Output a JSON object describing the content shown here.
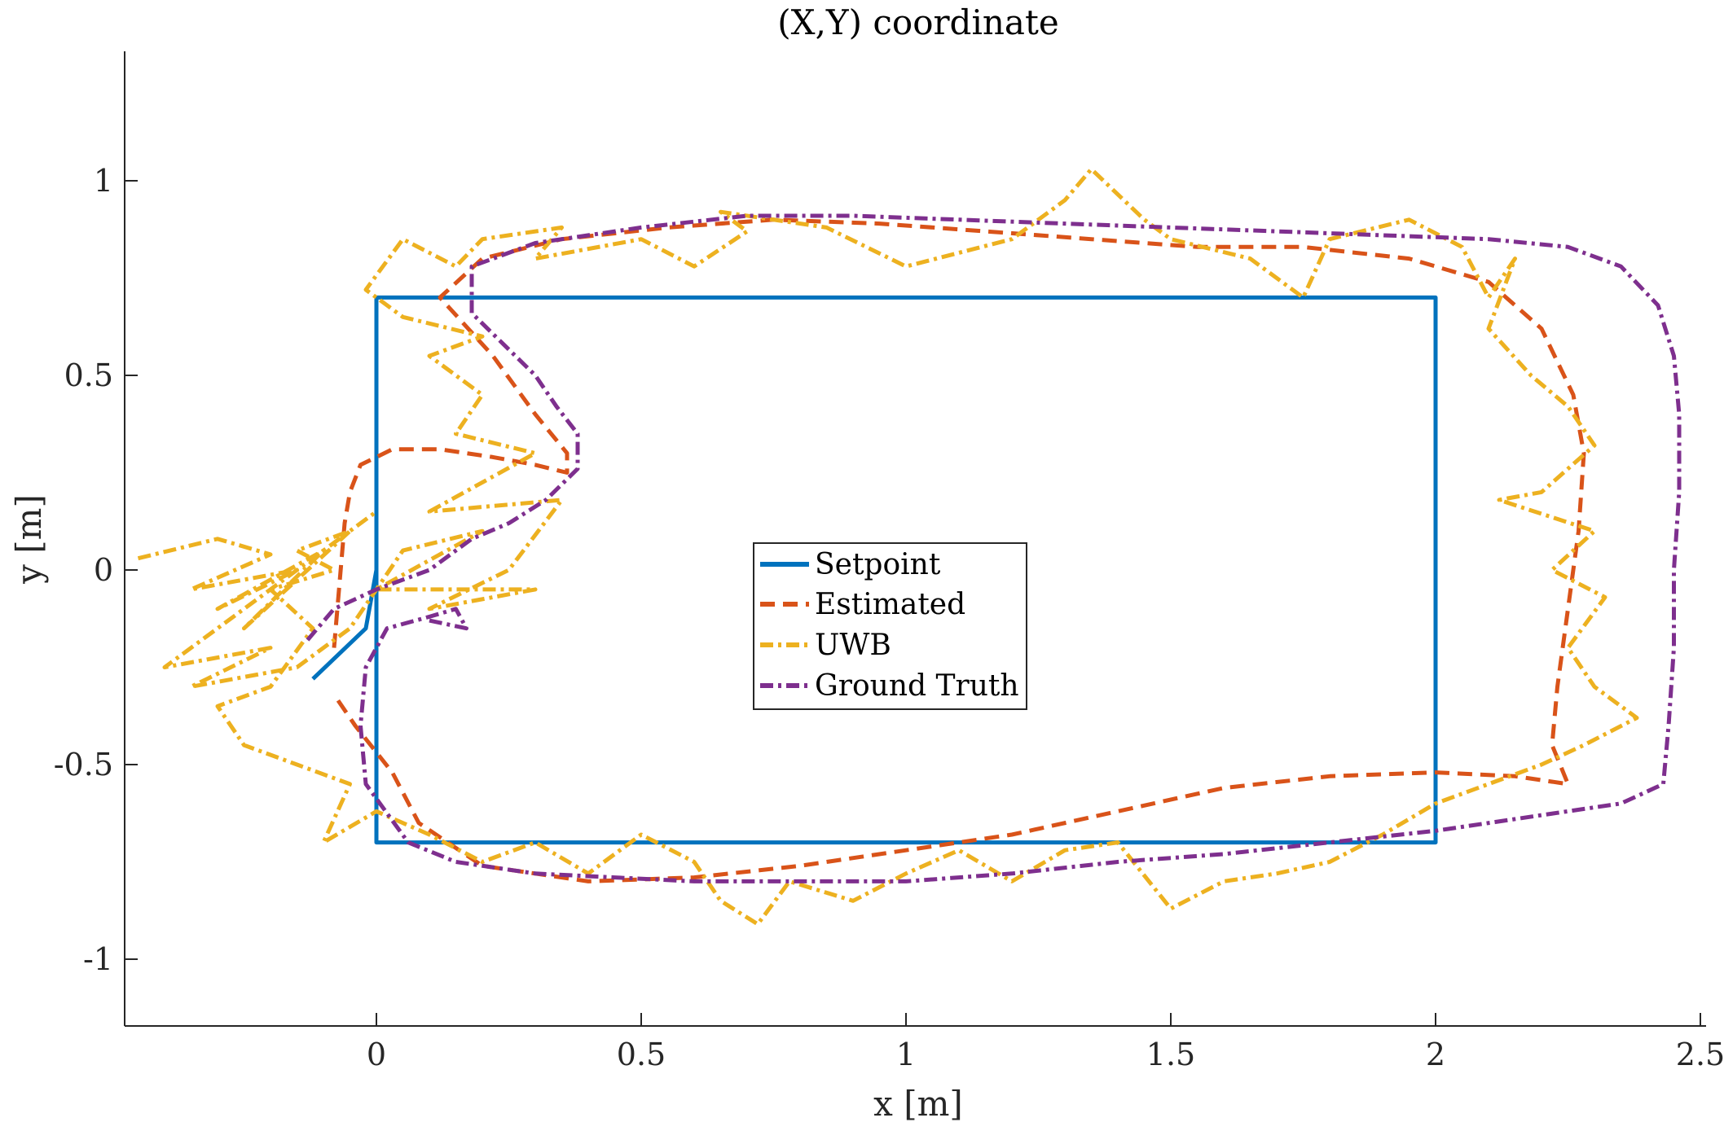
{
  "chart_data": {
    "type": "line",
    "title": "(X,Y) coordinate",
    "xlabel": "x [m]",
    "ylabel": "y [m]",
    "xlim": [
      -0.48,
      2.5
    ],
    "ylim": [
      -1.17,
      1.33
    ],
    "xticks": [
      0,
      0.5,
      1,
      1.5,
      2,
      2.5
    ],
    "xtick_labels": [
      "0",
      "0.5",
      "1",
      "1.5",
      "2",
      "2.5"
    ],
    "yticks": [
      -1,
      -0.5,
      0,
      0.5,
      1
    ],
    "ytick_labels": [
      "-1",
      "-0.5",
      "0",
      "0.5",
      "1"
    ],
    "grid": false,
    "legend_position": "center",
    "series": [
      {
        "name": "Setpoint",
        "color": "#0072BD",
        "style": "solid",
        "points": [
          [
            -0.12,
            -0.28
          ],
          [
            -0.02,
            -0.15
          ],
          [
            0,
            0
          ],
          [
            0,
            0.7
          ],
          [
            2,
            0.7
          ],
          [
            2,
            -0.7
          ],
          [
            0,
            -0.7
          ],
          [
            0,
            0
          ]
        ]
      },
      {
        "name": "Estimated",
        "color": "#D95319",
        "style": "dashed",
        "points": [
          [
            -0.08,
            -0.2
          ],
          [
            -0.06,
            0.12
          ],
          [
            -0.05,
            0.2
          ],
          [
            -0.03,
            0.27
          ],
          [
            0.03,
            0.31
          ],
          [
            0.12,
            0.31
          ],
          [
            0.22,
            0.29
          ],
          [
            0.3,
            0.27
          ],
          [
            0.36,
            0.25
          ],
          [
            0.36,
            0.3
          ],
          [
            0.3,
            0.4
          ],
          [
            0.22,
            0.55
          ],
          [
            0.12,
            0.7
          ],
          [
            0.2,
            0.8
          ],
          [
            0.35,
            0.85
          ],
          [
            0.55,
            0.88
          ],
          [
            0.75,
            0.9
          ],
          [
            0.95,
            0.89
          ],
          [
            1.15,
            0.87
          ],
          [
            1.35,
            0.85
          ],
          [
            1.55,
            0.83
          ],
          [
            1.75,
            0.83
          ],
          [
            1.95,
            0.8
          ],
          [
            2.1,
            0.74
          ],
          [
            2.2,
            0.62
          ],
          [
            2.26,
            0.45
          ],
          [
            2.28,
            0.3
          ],
          [
            2.27,
            0.1
          ],
          [
            2.25,
            -0.1
          ],
          [
            2.23,
            -0.3
          ],
          [
            2.22,
            -0.45
          ],
          [
            2.25,
            -0.55
          ],
          [
            2.15,
            -0.53
          ],
          [
            2.0,
            -0.52
          ],
          [
            1.8,
            -0.53
          ],
          [
            1.6,
            -0.56
          ],
          [
            1.4,
            -0.62
          ],
          [
            1.2,
            -0.68
          ],
          [
            1.0,
            -0.72
          ],
          [
            0.8,
            -0.76
          ],
          [
            0.6,
            -0.79
          ],
          [
            0.4,
            -0.8
          ],
          [
            0.2,
            -0.76
          ],
          [
            0.08,
            -0.65
          ],
          [
            0.03,
            -0.52
          ],
          [
            -0.04,
            -0.4
          ],
          [
            -0.08,
            -0.32
          ]
        ]
      },
      {
        "name": "UWB",
        "color": "#EDB120",
        "style": "dashdot",
        "points": [
          [
            -0.45,
            0.03
          ],
          [
            -0.3,
            0.08
          ],
          [
            -0.2,
            0.04
          ],
          [
            -0.35,
            -0.05
          ],
          [
            -0.15,
            0.0
          ],
          [
            -0.3,
            -0.1
          ],
          [
            -0.1,
            0.05
          ],
          [
            -0.25,
            -0.15
          ],
          [
            -0.05,
            0.1
          ],
          [
            -0.4,
            -0.25
          ],
          [
            -0.2,
            -0.2
          ],
          [
            -0.35,
            -0.3
          ],
          [
            -0.15,
            -0.25
          ],
          [
            -0.05,
            -0.15
          ],
          [
            0.05,
            0.05
          ],
          [
            0.2,
            0.1
          ],
          [
            0.0,
            -0.05
          ],
          [
            0.3,
            -0.05
          ],
          [
            0.1,
            -0.1
          ],
          [
            0.25,
            0.0
          ],
          [
            0.35,
            0.18
          ],
          [
            0.1,
            0.15
          ],
          [
            0.3,
            0.3
          ],
          [
            0.15,
            0.35
          ],
          [
            0.2,
            0.45
          ],
          [
            0.1,
            0.55
          ],
          [
            0.2,
            0.6
          ],
          [
            0.05,
            0.65
          ],
          [
            -0.02,
            0.72
          ],
          [
            0.05,
            0.85
          ],
          [
            0.15,
            0.78
          ],
          [
            0.2,
            0.85
          ],
          [
            0.35,
            0.88
          ],
          [
            0.3,
            0.8
          ],
          [
            0.5,
            0.85
          ],
          [
            0.6,
            0.78
          ],
          [
            0.7,
            0.87
          ],
          [
            0.65,
            0.92
          ],
          [
            0.85,
            0.88
          ],
          [
            1.0,
            0.78
          ],
          [
            1.2,
            0.85
          ],
          [
            1.3,
            0.95
          ],
          [
            1.35,
            1.03
          ],
          [
            1.45,
            0.9
          ],
          [
            1.5,
            0.85
          ],
          [
            1.65,
            0.8
          ],
          [
            1.75,
            0.7
          ],
          [
            1.8,
            0.85
          ],
          [
            1.95,
            0.9
          ],
          [
            2.05,
            0.83
          ],
          [
            2.1,
            0.7
          ],
          [
            2.15,
            0.8
          ],
          [
            2.1,
            0.62
          ],
          [
            2.18,
            0.5
          ],
          [
            2.25,
            0.42
          ],
          [
            2.3,
            0.32
          ],
          [
            2.2,
            0.2
          ],
          [
            2.12,
            0.18
          ],
          [
            2.3,
            0.1
          ],
          [
            2.22,
            0.0
          ],
          [
            2.32,
            -0.07
          ],
          [
            2.25,
            -0.2
          ],
          [
            2.3,
            -0.3
          ],
          [
            2.38,
            -0.38
          ],
          [
            2.28,
            -0.45
          ],
          [
            2.2,
            -0.5
          ],
          [
            2.1,
            -0.55
          ],
          [
            2.0,
            -0.6
          ],
          [
            1.9,
            -0.68
          ],
          [
            1.8,
            -0.75
          ],
          [
            1.7,
            -0.78
          ],
          [
            1.6,
            -0.8
          ],
          [
            1.5,
            -0.87
          ],
          [
            1.4,
            -0.7
          ],
          [
            1.3,
            -0.72
          ],
          [
            1.2,
            -0.8
          ],
          [
            1.1,
            -0.72
          ],
          [
            1.0,
            -0.78
          ],
          [
            0.9,
            -0.85
          ],
          [
            0.78,
            -0.8
          ],
          [
            0.72,
            -0.91
          ],
          [
            0.65,
            -0.85
          ],
          [
            0.6,
            -0.75
          ],
          [
            0.5,
            -0.68
          ],
          [
            0.4,
            -0.78
          ],
          [
            0.3,
            -0.7
          ],
          [
            0.2,
            -0.75
          ],
          [
            0.1,
            -0.68
          ],
          [
            0.0,
            -0.62
          ],
          [
            -0.1,
            -0.7
          ],
          [
            -0.05,
            -0.55
          ],
          [
            -0.15,
            -0.5
          ],
          [
            -0.25,
            -0.45
          ],
          [
            -0.3,
            -0.35
          ],
          [
            -0.2,
            -0.3
          ],
          [
            -0.12,
            -0.15
          ],
          [
            -0.2,
            -0.05
          ],
          [
            -0.08,
            0.0
          ],
          [
            -0.15,
            0.05
          ],
          [
            -0.05,
            0.1
          ],
          [
            0.0,
            0.15
          ]
        ]
      },
      {
        "name": "Ground Truth",
        "color": "#7E2F8E",
        "style": "dashdot",
        "points": [
          [
            -0.13,
            -0.18
          ],
          [
            -0.08,
            -0.1
          ],
          [
            0.0,
            -0.05
          ],
          [
            0.1,
            0.0
          ],
          [
            0.18,
            0.08
          ],
          [
            0.25,
            0.12
          ],
          [
            0.32,
            0.18
          ],
          [
            0.38,
            0.26
          ],
          [
            0.38,
            0.35
          ],
          [
            0.34,
            0.42
          ],
          [
            0.3,
            0.5
          ],
          [
            0.24,
            0.58
          ],
          [
            0.18,
            0.66
          ],
          [
            0.18,
            0.78
          ],
          [
            0.3,
            0.84
          ],
          [
            0.5,
            0.88
          ],
          [
            0.7,
            0.91
          ],
          [
            0.9,
            0.91
          ],
          [
            1.1,
            0.9
          ],
          [
            1.3,
            0.89
          ],
          [
            1.5,
            0.88
          ],
          [
            1.7,
            0.87
          ],
          [
            1.9,
            0.86
          ],
          [
            2.1,
            0.85
          ],
          [
            2.25,
            0.83
          ],
          [
            2.35,
            0.78
          ],
          [
            2.42,
            0.68
          ],
          [
            2.45,
            0.55
          ],
          [
            2.46,
            0.4
          ],
          [
            2.46,
            0.2
          ],
          [
            2.45,
            0.0
          ],
          [
            2.45,
            -0.2
          ],
          [
            2.44,
            -0.4
          ],
          [
            2.43,
            -0.55
          ],
          [
            2.35,
            -0.6
          ],
          [
            2.2,
            -0.63
          ],
          [
            2.0,
            -0.67
          ],
          [
            1.8,
            -0.7
          ],
          [
            1.6,
            -0.73
          ],
          [
            1.4,
            -0.75
          ],
          [
            1.2,
            -0.78
          ],
          [
            1.0,
            -0.8
          ],
          [
            0.8,
            -0.8
          ],
          [
            0.6,
            -0.8
          ],
          [
            0.45,
            -0.79
          ],
          [
            0.3,
            -0.78
          ],
          [
            0.15,
            -0.75
          ],
          [
            0.06,
            -0.7
          ],
          [
            -0.02,
            -0.55
          ],
          [
            -0.03,
            -0.4
          ],
          [
            -0.02,
            -0.25
          ],
          [
            0.02,
            -0.15
          ],
          [
            0.1,
            -0.12
          ],
          [
            0.15,
            -0.1
          ],
          [
            0.17,
            -0.15
          ],
          [
            0.1,
            -0.13
          ]
        ]
      }
    ]
  }
}
